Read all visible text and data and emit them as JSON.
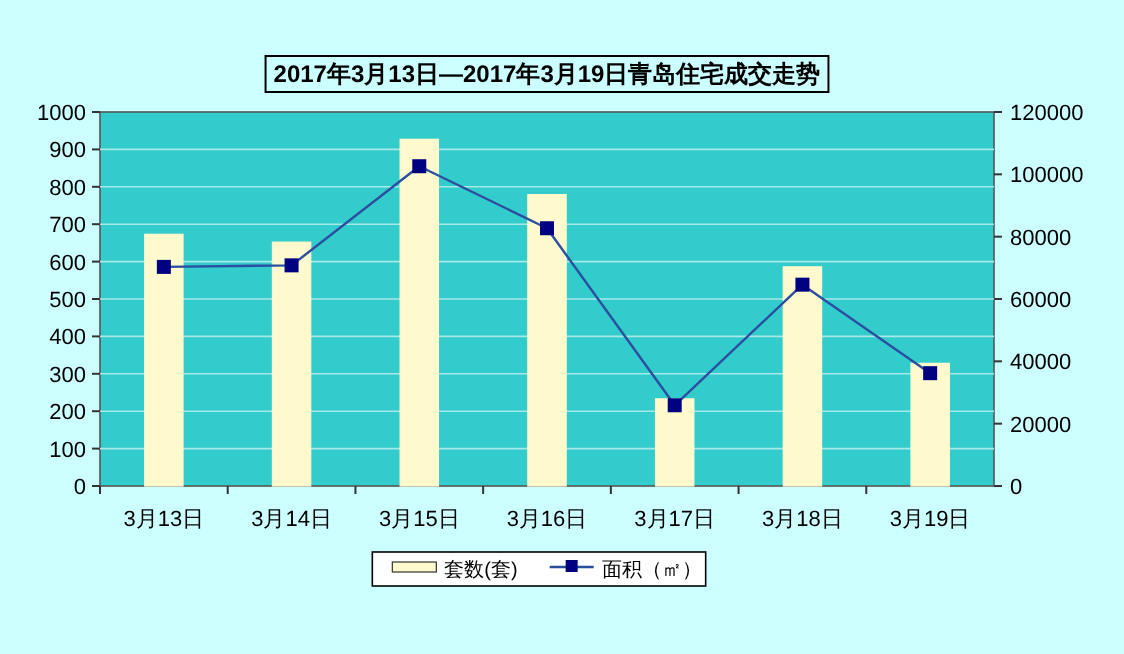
{
  "chart_data": {
    "type": "bar",
    "title": "2017年3月13日—2017年3月19日青岛住宅成交走势",
    "categories": [
      "3月13日",
      "3月14日",
      "3月15日",
      "3月16日",
      "3月17日",
      "3月18日",
      "3月19日"
    ],
    "series": [
      {
        "name": "套数(套)",
        "color": "#fffacd",
        "values": [
          673,
          652,
          927,
          779,
          233,
          586,
          328
        ]
      },
      {
        "name": "面积（㎡）",
        "type": "line",
        "axis": "y2",
        "color": "#000080",
        "values": [
          70300,
          70800,
          102600,
          82700,
          25900,
          64600,
          36200
        ]
      }
    ],
    "ylim": [
      0,
      1000
    ],
    "yticks": [
      0,
      100,
      200,
      300,
      400,
      500,
      600,
      700,
      800,
      900,
      1000
    ],
    "y2lim": [
      0,
      120000
    ],
    "y2ticks": [
      0,
      20000,
      40000,
      60000,
      80000,
      100000,
      120000
    ],
    "grid": "y",
    "legend": "bottom",
    "marker": "square",
    "line_style": "solid"
  }
}
